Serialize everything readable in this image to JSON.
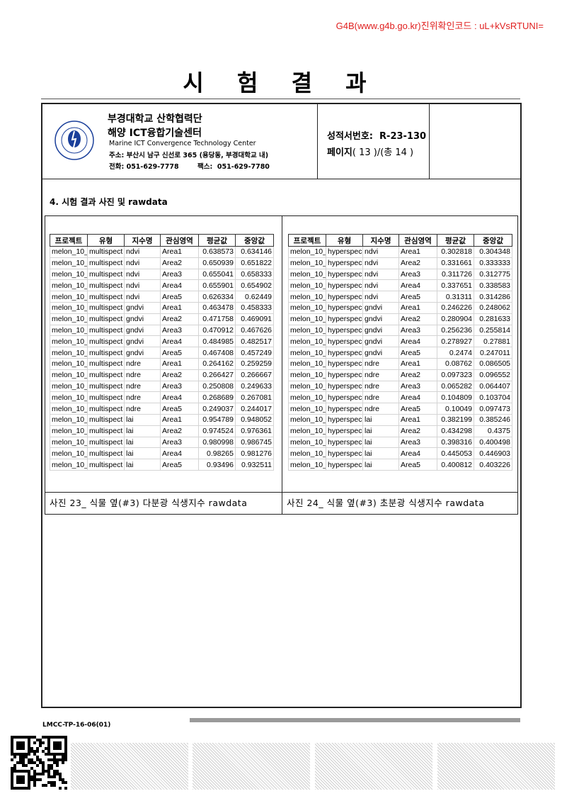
{
  "watermark": "G4B(www.g4b.go.kr)진위확인코드 : uL+kVsRTUNI=",
  "title": "시 험 결 과",
  "header": {
    "org_line1": "부경대학교 산학협력단",
    "org_line2": "해양 ICT융합기술센터",
    "org_en": "Marine ICT Convergence Technology Center",
    "address": "주소: 부산시 남구 신선로 365 (용당동, 부경대학교 내)",
    "phone": "전화: 051-629-7778        팩스:  051-629-7780",
    "report_no": "성적서번호:  R-23-130",
    "page_label": "페이지",
    "page_text": "( 13 )/(총 14 )"
  },
  "section_heading": "4. 시험 결과 사진 및 rawdata",
  "columns": [
    "프로젝트",
    "유형",
    "지수명",
    "관심영역",
    "평균값",
    "중앙값"
  ],
  "left_table": {
    "caption": "사진 23_ 식물 옆(#3) 다분광 식생지수 rawdata",
    "rows": [
      [
        "melon_10_",
        "multispect",
        "ndvi",
        "Area1",
        "0.638573",
        "0.634146"
      ],
      [
        "melon_10_",
        "multispect",
        "ndvi",
        "Area2",
        "0.650939",
        "0.651822"
      ],
      [
        "melon_10_",
        "multispect",
        "ndvi",
        "Area3",
        "0.655041",
        "0.658333"
      ],
      [
        "melon_10_",
        "multispect",
        "ndvi",
        "Area4",
        "0.655901",
        "0.654902"
      ],
      [
        "melon_10_",
        "multispect",
        "ndvi",
        "Area5",
        "0.626334",
        "0.62449"
      ],
      [
        "melon_10_",
        "multispect",
        "gndvi",
        "Area1",
        "0.463478",
        "0.458333"
      ],
      [
        "melon_10_",
        "multispect",
        "gndvi",
        "Area2",
        "0.471758",
        "0.469091"
      ],
      [
        "melon_10_",
        "multispect",
        "gndvi",
        "Area3",
        "0.470912",
        "0.467626"
      ],
      [
        "melon_10_",
        "multispect",
        "gndvi",
        "Area4",
        "0.484985",
        "0.482517"
      ],
      [
        "melon_10_",
        "multispect",
        "gndvi",
        "Area5",
        "0.467408",
        "0.457249"
      ],
      [
        "melon_10_",
        "multispect",
        "ndre",
        "Area1",
        "0.264162",
        "0.259259"
      ],
      [
        "melon_10_",
        "multispect",
        "ndre",
        "Area2",
        "0.266427",
        "0.266667"
      ],
      [
        "melon_10_",
        "multispect",
        "ndre",
        "Area3",
        "0.250808",
        "0.249633"
      ],
      [
        "melon_10_",
        "multispect",
        "ndre",
        "Area4",
        "0.268689",
        "0.267081"
      ],
      [
        "melon_10_",
        "multispect",
        "ndre",
        "Area5",
        "0.249037",
        "0.244017"
      ],
      [
        "melon_10_",
        "multispect",
        "lai",
        "Area1",
        "0.954789",
        "0.948052"
      ],
      [
        "melon_10_",
        "multispect",
        "lai",
        "Area2",
        "0.974524",
        "0.976361"
      ],
      [
        "melon_10_",
        "multispect",
        "lai",
        "Area3",
        "0.980998",
        "0.986745"
      ],
      [
        "melon_10_",
        "multispect",
        "lai",
        "Area4",
        "0.98265",
        "0.981276"
      ],
      [
        "melon_10_",
        "multispect",
        "lai",
        "Area5",
        "0.93496",
        "0.932511"
      ]
    ]
  },
  "right_table": {
    "caption": "사진 24_ 식물 옆(#3) 초분광 식생지수 rawdata",
    "rows": [
      [
        "melon_10_",
        "hyperspec",
        "ndvi",
        "Area1",
        "0.302818",
        "0.304348"
      ],
      [
        "melon_10_",
        "hyperspec",
        "ndvi",
        "Area2",
        "0.331661",
        "0.333333"
      ],
      [
        "melon_10_",
        "hyperspec",
        "ndvi",
        "Area3",
        "0.311726",
        "0.312775"
      ],
      [
        "melon_10_",
        "hyperspec",
        "ndvi",
        "Area4",
        "0.337651",
        "0.338583"
      ],
      [
        "melon_10_",
        "hyperspec",
        "ndvi",
        "Area5",
        "0.31311",
        "0.314286"
      ],
      [
        "melon_10_",
        "hyperspec",
        "gndvi",
        "Area1",
        "0.246226",
        "0.248062"
      ],
      [
        "melon_10_",
        "hyperspec",
        "gndvi",
        "Area2",
        "0.280904",
        "0.281633"
      ],
      [
        "melon_10_",
        "hyperspec",
        "gndvi",
        "Area3",
        "0.256236",
        "0.255814"
      ],
      [
        "melon_10_",
        "hyperspec",
        "gndvi",
        "Area4",
        "0.278927",
        "0.27881"
      ],
      [
        "melon_10_",
        "hyperspec",
        "gndvi",
        "Area5",
        "0.2474",
        "0.247011"
      ],
      [
        "melon_10_",
        "hyperspec",
        "ndre",
        "Area1",
        "0.08762",
        "0.086505"
      ],
      [
        "melon_10_",
        "hyperspec",
        "ndre",
        "Area2",
        "0.097323",
        "0.096552"
      ],
      [
        "melon_10_",
        "hyperspec",
        "ndre",
        "Area3",
        "0.065282",
        "0.064407"
      ],
      [
        "melon_10_",
        "hyperspec",
        "ndre",
        "Area4",
        "0.104809",
        "0.103704"
      ],
      [
        "melon_10_",
        "hyperspec",
        "ndre",
        "Area5",
        "0.10049",
        "0.097473"
      ],
      [
        "melon_10_",
        "hyperspec",
        "lai",
        "Area1",
        "0.382199",
        "0.385246"
      ],
      [
        "melon_10_",
        "hyperspec",
        "lai",
        "Area2",
        "0.434298",
        "0.4375"
      ],
      [
        "melon_10_",
        "hyperspec",
        "lai",
        "Area3",
        "0.398316",
        "0.400498"
      ],
      [
        "melon_10_",
        "hyperspec",
        "lai",
        "Area4",
        "0.445053",
        "0.446903"
      ],
      [
        "melon_10_",
        "hyperspec",
        "lai",
        "Area5",
        "0.400812",
        "0.403226"
      ]
    ]
  },
  "footer": {
    "form_code": "LMCC-TP-16-06(01)"
  },
  "colors": {
    "watermark": "#e0201f",
    "logo_blue": "#1a3f9a"
  }
}
